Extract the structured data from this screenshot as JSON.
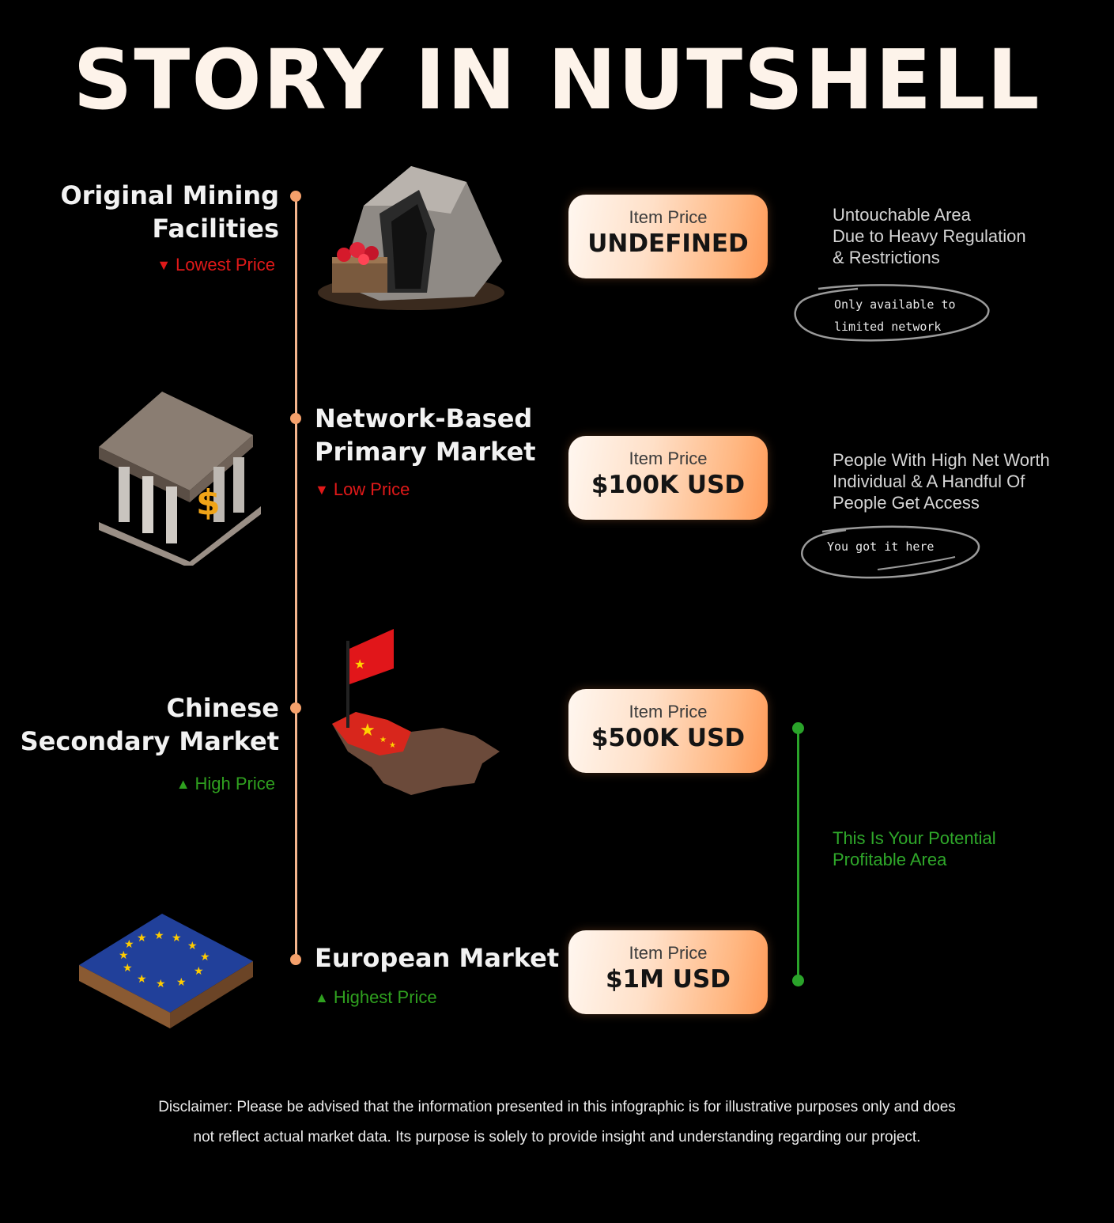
{
  "title": "STORY IN NUTSHELL",
  "stages": [
    {
      "title_line1": "Original Mining",
      "title_line2": "Facilities",
      "price_tag": "Lowest Price",
      "card_label": "Item Price",
      "card_value": "UNDEFINED",
      "note_lines": [
        "Untouchable Area",
        "Due to Heavy Regulation",
        "& Restrictions"
      ],
      "scribble_lines": [
        "Only available to",
        "limited network"
      ]
    },
    {
      "title_line1": "Network-Based",
      "title_line2": "Primary Market",
      "price_tag": "Low Price",
      "card_label": "Item Price",
      "card_value": "$100K USD",
      "note_lines": [
        "People With High Net Worth",
        "Individual & A Handful Of",
        "People Get Access"
      ],
      "scribble_lines": [
        "You got it here"
      ]
    },
    {
      "title_line1": "Chinese",
      "title_line2": "Secondary Market",
      "price_tag": "High Price",
      "card_label": "Item Price",
      "card_value": "$500K USD"
    },
    {
      "title_line1": "European Market",
      "price_tag": "Highest Price",
      "card_label": "Item Price",
      "card_value": "$1M USD"
    }
  ],
  "profit_note": [
    "This Is Your Potential",
    "Profitable Area"
  ],
  "disclaimer_lines": [
    "Disclaimer: Please be advised that the information presented in this infographic is for illustrative purposes only and does",
    "not reflect actual market data. Its purpose is solely to provide insight and understanding regarding our project."
  ],
  "colors": {
    "accent": "#f4a06b",
    "down": "#e01919",
    "up": "#2fa01f"
  },
  "icons": [
    "mine-icon",
    "bank-icon",
    "china-map-icon",
    "eu-flag-tile-icon"
  ]
}
